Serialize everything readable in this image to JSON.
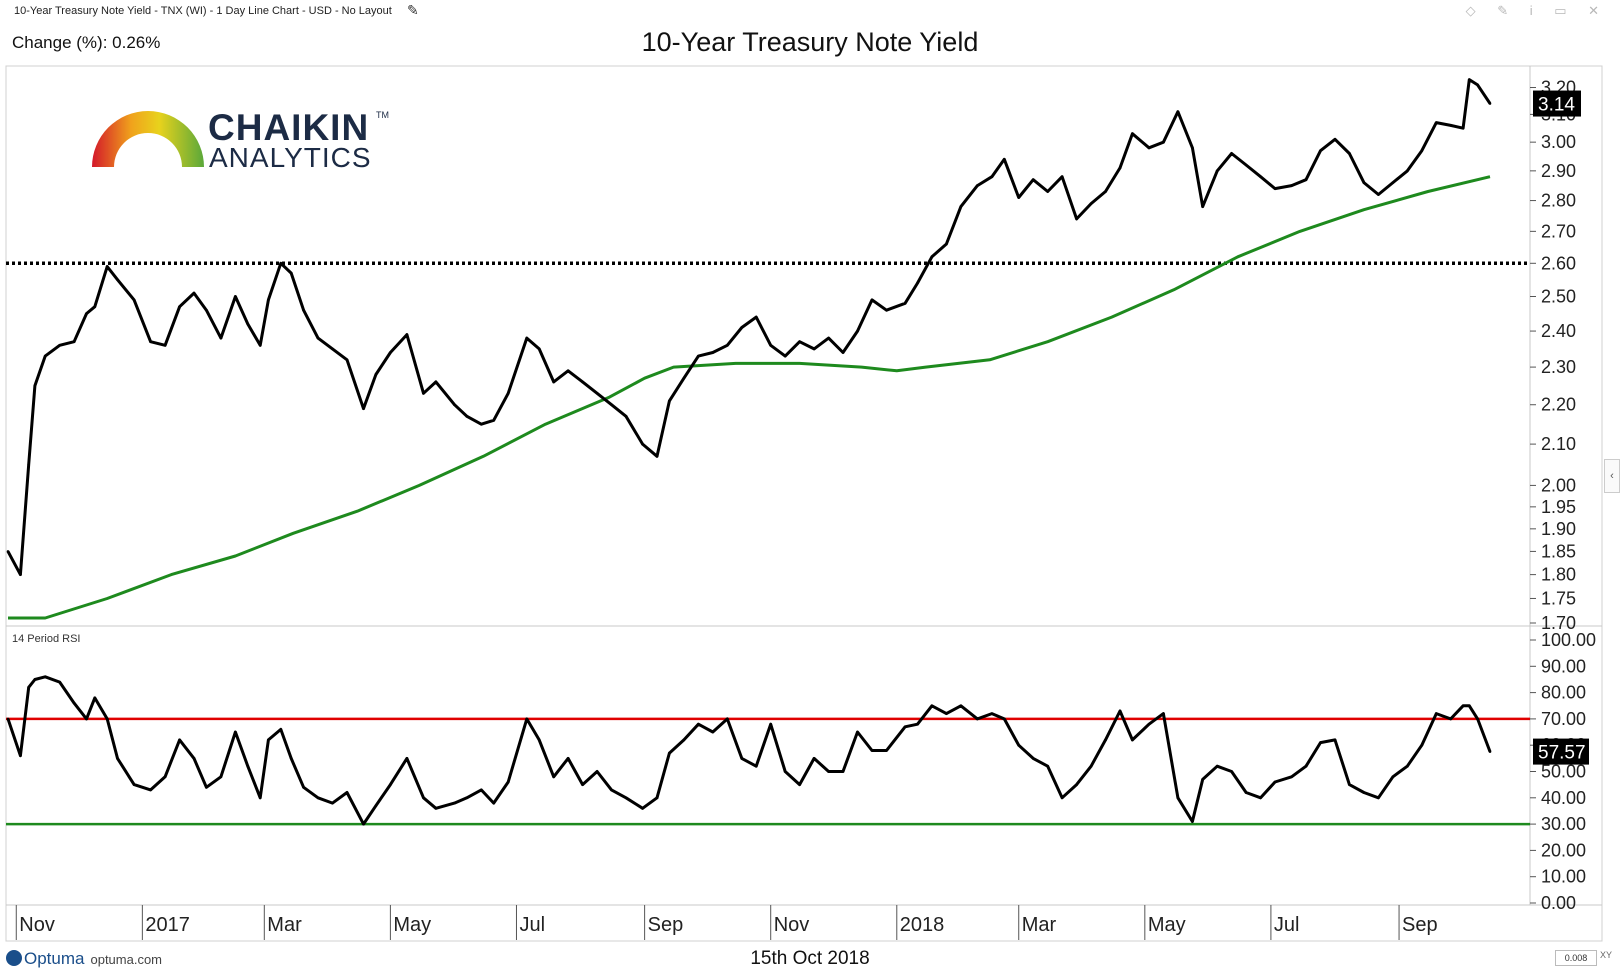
{
  "header": {
    "description": "10-Year Treasury Note Yield - TNX (WI) - 1 Day Line Chart - USD - No Layout",
    "change_label": "Change (%): 0.26%",
    "window_icons": "◇ ✎ i ▭ ✕"
  },
  "icons": [
    "edit-pencil-icon",
    "diamond-icon",
    "pin-icon",
    "info-icon",
    "restore-icon",
    "close-icon",
    "collapse-chevron-icon"
  ],
  "logo": {
    "line1": "CHAIKIN",
    "line2": "ANALYTICS",
    "tm": "TM"
  },
  "footer": {
    "date": "15th Oct 2018",
    "brand": "Optuma",
    "site": "optuma.com",
    "zoom_value": "0.008",
    "zoom_icon_label": "XY"
  },
  "collapse_icon": "‹",
  "chart_data": [
    {
      "type": "line",
      "title": "10-Year Treasury Note Yield",
      "y_scale": "log",
      "ylim": [
        1.7,
        3.24
      ],
      "yticks": [
        {
          "v": 1.7,
          "label": "1.70"
        },
        {
          "v": 1.75,
          "label": "1.75"
        },
        {
          "v": 1.8,
          "label": "1.80"
        },
        {
          "v": 1.85,
          "label": "1.85"
        },
        {
          "v": 1.9,
          "label": "1.90"
        },
        {
          "v": 1.95,
          "label": "1.95"
        },
        {
          "v": 2.0,
          "label": "2.00"
        },
        {
          "v": 2.1,
          "label": "2.10"
        },
        {
          "v": 2.2,
          "label": "2.20"
        },
        {
          "v": 2.3,
          "label": "2.30"
        },
        {
          "v": 2.4,
          "label": "2.40"
        },
        {
          "v": 2.5,
          "label": "2.50"
        },
        {
          "v": 2.6,
          "label": "2.60"
        },
        {
          "v": 2.7,
          "label": "2.70"
        },
        {
          "v": 2.8,
          "label": "2.80"
        },
        {
          "v": 2.9,
          "label": "2.90"
        },
        {
          "v": 3.0,
          "label": "3.00"
        },
        {
          "v": 3.1,
          "label": "3.10"
        },
        {
          "v": 3.2,
          "label": "3.20"
        }
      ],
      "last_value_label": "3.14",
      "last_value": 3.14,
      "horizontal_line": {
        "value": 2.6,
        "style": "dotted",
        "color": "#000000"
      },
      "grid": false,
      "series": [
        {
          "color": "#000000",
          "x": [
            "2016-10-28",
            "2016-11-03",
            "2016-11-07",
            "2016-11-10",
            "2016-11-15",
            "2016-11-22",
            "2016-11-29",
            "2016-12-05",
            "2016-12-09",
            "2016-12-15",
            "2016-12-20",
            "2016-12-28",
            "2017-01-05",
            "2017-01-12",
            "2017-01-19",
            "2017-01-26",
            "2017-02-01",
            "2017-02-08",
            "2017-02-15",
            "2017-02-21",
            "2017-02-27",
            "2017-03-03",
            "2017-03-09",
            "2017-03-14",
            "2017-03-20",
            "2017-03-27",
            "2017-04-03",
            "2017-04-10",
            "2017-04-18",
            "2017-04-24",
            "2017-05-01",
            "2017-05-09",
            "2017-05-17",
            "2017-05-23",
            "2017-06-01",
            "2017-06-07",
            "2017-06-14",
            "2017-06-20",
            "2017-06-27",
            "2017-07-06",
            "2017-07-12",
            "2017-07-19",
            "2017-07-26",
            "2017-08-02",
            "2017-08-09",
            "2017-08-16",
            "2017-08-23",
            "2017-08-31",
            "2017-09-07",
            "2017-09-13",
            "2017-09-20",
            "2017-09-27",
            "2017-10-04",
            "2017-10-11",
            "2017-10-18",
            "2017-10-25",
            "2017-11-01",
            "2017-11-08",
            "2017-11-15",
            "2017-11-22",
            "2017-11-29",
            "2017-12-06",
            "2017-12-13",
            "2017-12-20",
            "2017-12-27",
            "2018-01-05",
            "2018-01-11",
            "2018-01-18",
            "2018-01-25",
            "2018-02-01",
            "2018-02-09",
            "2018-02-16",
            "2018-02-22",
            "2018-03-01",
            "2018-03-08",
            "2018-03-15",
            "2018-03-22",
            "2018-03-29",
            "2018-04-05",
            "2018-04-12",
            "2018-04-19",
            "2018-04-25",
            "2018-05-03",
            "2018-05-10",
            "2018-05-17",
            "2018-05-24",
            "2018-05-29",
            "2018-06-05",
            "2018-06-12",
            "2018-06-19",
            "2018-06-26",
            "2018-07-03",
            "2018-07-11",
            "2018-07-18",
            "2018-07-25",
            "2018-08-01",
            "2018-08-08",
            "2018-08-15",
            "2018-08-22",
            "2018-08-29",
            "2018-09-05",
            "2018-09-12",
            "2018-09-19",
            "2018-09-26",
            "2018-10-02",
            "2018-10-05",
            "2018-10-09",
            "2018-10-15"
          ],
          "y": [
            1.85,
            1.8,
            2.05,
            2.25,
            2.33,
            2.36,
            2.37,
            2.45,
            2.47,
            2.59,
            2.55,
            2.49,
            2.37,
            2.36,
            2.47,
            2.51,
            2.46,
            2.38,
            2.5,
            2.42,
            2.36,
            2.49,
            2.6,
            2.57,
            2.46,
            2.38,
            2.35,
            2.32,
            2.19,
            2.28,
            2.34,
            2.39,
            2.23,
            2.26,
            2.2,
            2.17,
            2.15,
            2.16,
            2.23,
            2.38,
            2.35,
            2.26,
            2.29,
            2.26,
            2.23,
            2.2,
            2.17,
            2.1,
            2.07,
            2.21,
            2.27,
            2.33,
            2.34,
            2.36,
            2.41,
            2.44,
            2.36,
            2.33,
            2.37,
            2.35,
            2.38,
            2.34,
            2.4,
            2.49,
            2.46,
            2.48,
            2.54,
            2.62,
            2.66,
            2.78,
            2.85,
            2.88,
            2.94,
            2.81,
            2.87,
            2.83,
            2.88,
            2.74,
            2.79,
            2.83,
            2.91,
            3.03,
            2.98,
            3.0,
            3.11,
            2.98,
            2.78,
            2.9,
            2.96,
            2.92,
            2.88,
            2.84,
            2.85,
            2.87,
            2.97,
            3.01,
            2.96,
            2.86,
            2.82,
            2.86,
            2.9,
            2.97,
            3.07,
            3.06,
            3.05,
            3.23,
            3.21,
            3.14
          ]
        },
        {
          "name": "Moving Average",
          "color": "#1e8a1e",
          "x": [
            "2016-10-28",
            "2016-11-15",
            "2016-12-15",
            "2017-01-15",
            "2017-02-15",
            "2017-03-15",
            "2017-04-15",
            "2017-05-15",
            "2017-06-15",
            "2017-07-15",
            "2017-08-15",
            "2017-09-01",
            "2017-09-15",
            "2017-10-15",
            "2017-11-15",
            "2017-12-15",
            "2018-01-01",
            "2018-01-15",
            "2018-02-15",
            "2018-03-15",
            "2018-04-15",
            "2018-05-15",
            "2018-06-15",
            "2018-07-15",
            "2018-08-15",
            "2018-09-15",
            "2018-10-15"
          ],
          "y": [
            1.71,
            1.71,
            1.75,
            1.8,
            1.84,
            1.89,
            1.94,
            2.0,
            2.07,
            2.15,
            2.22,
            2.27,
            2.3,
            2.31,
            2.31,
            2.3,
            2.29,
            2.3,
            2.32,
            2.37,
            2.44,
            2.52,
            2.62,
            2.7,
            2.77,
            2.83,
            2.88
          ]
        }
      ]
    },
    {
      "type": "line",
      "title": "14 Period RSI",
      "ylim": [
        0,
        100
      ],
      "yticks": [
        {
          "v": 0,
          "label": "0.00"
        },
        {
          "v": 10,
          "label": "10.00"
        },
        {
          "v": 20,
          "label": "20.00"
        },
        {
          "v": 30,
          "label": "30.00"
        },
        {
          "v": 40,
          "label": "40.00"
        },
        {
          "v": 50,
          "label": "50.00"
        },
        {
          "v": 60,
          "label": "60.00"
        },
        {
          "v": 70,
          "label": "70.00"
        },
        {
          "v": 80,
          "label": "80.00"
        },
        {
          "v": 90,
          "label": "90.00"
        },
        {
          "v": 100,
          "label": "100.00"
        }
      ],
      "last_value_label": "57.57",
      "last_value": 57.57,
      "reference_lines": [
        {
          "value": 70,
          "color": "#e00000"
        },
        {
          "value": 30,
          "color": "#1e8a1e"
        }
      ],
      "series": [
        {
          "name": "14 Period RSI",
          "color": "#000000",
          "x": [
            "2016-10-28",
            "2016-11-03",
            "2016-11-07",
            "2016-11-10",
            "2016-11-15",
            "2016-11-22",
            "2016-11-29",
            "2016-12-05",
            "2016-12-09",
            "2016-12-15",
            "2016-12-20",
            "2016-12-28",
            "2017-01-05",
            "2017-01-12",
            "2017-01-19",
            "2017-01-26",
            "2017-02-01",
            "2017-02-08",
            "2017-02-15",
            "2017-02-21",
            "2017-02-27",
            "2017-03-03",
            "2017-03-09",
            "2017-03-14",
            "2017-03-20",
            "2017-03-27",
            "2017-04-03",
            "2017-04-10",
            "2017-04-18",
            "2017-04-24",
            "2017-05-01",
            "2017-05-09",
            "2017-05-17",
            "2017-05-23",
            "2017-06-01",
            "2017-06-07",
            "2017-06-14",
            "2017-06-20",
            "2017-06-27",
            "2017-07-06",
            "2017-07-12",
            "2017-07-19",
            "2017-07-26",
            "2017-08-02",
            "2017-08-09",
            "2017-08-16",
            "2017-08-23",
            "2017-08-31",
            "2017-09-07",
            "2017-09-13",
            "2017-09-20",
            "2017-09-27",
            "2017-10-04",
            "2017-10-11",
            "2017-10-18",
            "2017-10-25",
            "2017-11-01",
            "2017-11-08",
            "2017-11-15",
            "2017-11-22",
            "2017-11-29",
            "2017-12-06",
            "2017-12-13",
            "2017-12-20",
            "2017-12-27",
            "2018-01-05",
            "2018-01-11",
            "2018-01-18",
            "2018-01-25",
            "2018-02-01",
            "2018-02-09",
            "2018-02-16",
            "2018-02-22",
            "2018-03-01",
            "2018-03-08",
            "2018-03-15",
            "2018-03-22",
            "2018-03-29",
            "2018-04-05",
            "2018-04-12",
            "2018-04-19",
            "2018-04-25",
            "2018-05-03",
            "2018-05-10",
            "2018-05-17",
            "2018-05-24",
            "2018-05-29",
            "2018-06-05",
            "2018-06-12",
            "2018-06-19",
            "2018-06-26",
            "2018-07-03",
            "2018-07-11",
            "2018-07-18",
            "2018-07-25",
            "2018-08-01",
            "2018-08-08",
            "2018-08-15",
            "2018-08-22",
            "2018-08-29",
            "2018-09-05",
            "2018-09-12",
            "2018-09-19",
            "2018-09-26",
            "2018-10-02",
            "2018-10-05",
            "2018-10-09",
            "2018-10-15"
          ],
          "y": [
            70,
            56,
            82,
            85,
            86,
            84,
            76,
            70,
            78,
            70,
            55,
            45,
            43,
            48,
            62,
            55,
            44,
            48,
            65,
            52,
            40,
            62,
            66,
            55,
            44,
            40,
            38,
            42,
            30,
            37,
            45,
            55,
            40,
            36,
            38,
            40,
            43,
            38,
            46,
            70,
            62,
            48,
            55,
            45,
            50,
            43,
            40,
            36,
            40,
            57,
            62,
            68,
            65,
            70,
            55,
            52,
            68,
            50,
            45,
            55,
            50,
            50,
            65,
            58,
            58,
            67,
            68,
            75,
            72,
            75,
            70,
            72,
            70,
            60,
            55,
            52,
            40,
            45,
            52,
            62,
            73,
            62,
            68,
            72,
            40,
            31,
            47,
            52,
            50,
            42,
            40,
            46,
            48,
            52,
            61,
            62,
            45,
            42,
            40,
            48,
            52,
            60,
            72,
            70,
            75,
            75,
            70,
            57.57
          ]
        }
      ]
    }
  ],
  "x_axis": {
    "ticks": [
      {
        "date": "2016-11-01",
        "label": "Nov"
      },
      {
        "date": "2017-01-01",
        "label": "2017"
      },
      {
        "date": "2017-03-01",
        "label": "Mar"
      },
      {
        "date": "2017-05-01",
        "label": "May"
      },
      {
        "date": "2017-07-01",
        "label": "Jul"
      },
      {
        "date": "2017-09-01",
        "label": "Sep"
      },
      {
        "date": "2017-11-01",
        "label": "Nov"
      },
      {
        "date": "2018-01-01",
        "label": "2018"
      },
      {
        "date": "2018-03-01",
        "label": "Mar"
      },
      {
        "date": "2018-05-01",
        "label": "May"
      },
      {
        "date": "2018-07-01",
        "label": "Jul"
      },
      {
        "date": "2018-09-01",
        "label": "Sep"
      }
    ]
  },
  "colors": {
    "price_line": "#000000",
    "moving_average": "#1e8a1e",
    "rsi_overbought": "#e00000",
    "rsi_oversold": "#1e8a1e",
    "last_value_badge": "#000000",
    "logo_navy": "#1c2b45",
    "optuma_blue": "#1a4e8a"
  }
}
